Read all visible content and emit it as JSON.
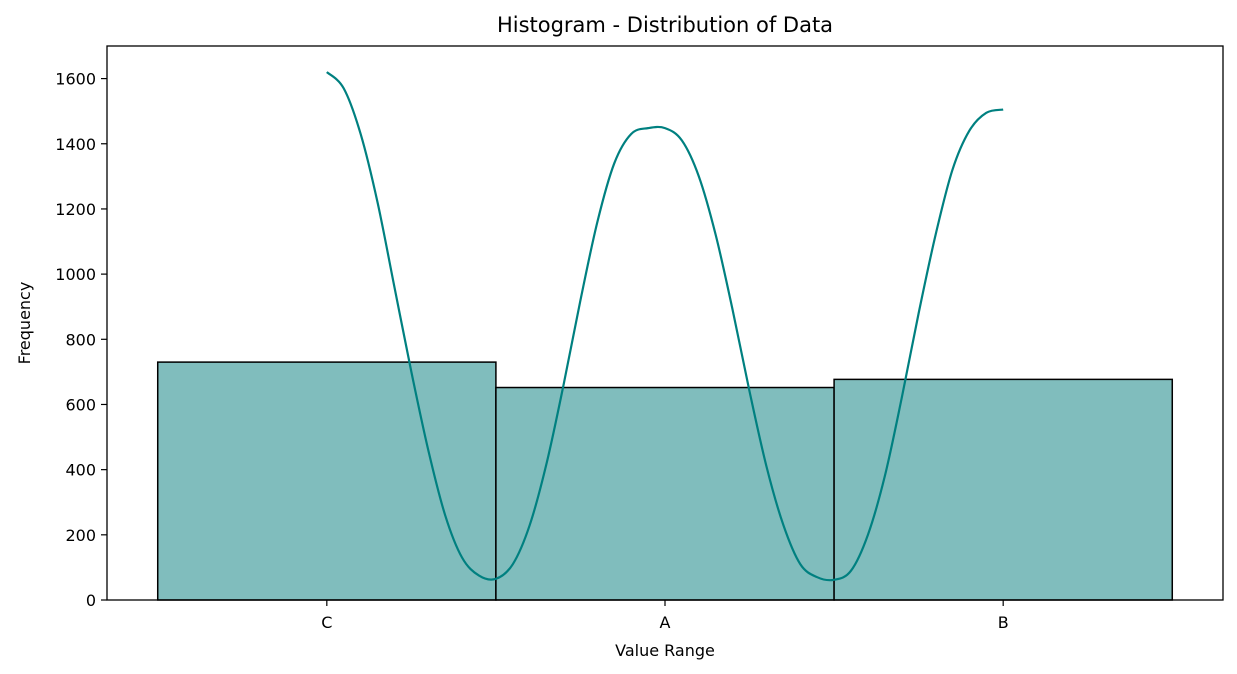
{
  "chart_data": {
    "type": "bar",
    "title": "Histogram - Distribution of Data",
    "xlabel": "Value Range",
    "ylabel": "Frequency",
    "categories": [
      "C",
      "A",
      "B"
    ],
    "values": [
      730,
      652,
      677
    ],
    "ylim": [
      0,
      1700
    ],
    "yticks": [
      0,
      200,
      400,
      600,
      800,
      1000,
      1200,
      1400,
      1600
    ],
    "xlim": [
      -0.65,
      2.65
    ],
    "grid": false,
    "bar_color": "#80bdbd",
    "bar_edge_color": "#000000",
    "kde": {
      "color": "#008080",
      "x": [
        0.0,
        0.05,
        0.1,
        0.15,
        0.2,
        0.25,
        0.3,
        0.35,
        0.4,
        0.45,
        0.5,
        0.55,
        0.6,
        0.65,
        0.7,
        0.75,
        0.8,
        0.85,
        0.9,
        0.95,
        1.0,
        1.05,
        1.1,
        1.15,
        1.2,
        1.25,
        1.3,
        1.35,
        1.4,
        1.45,
        1.5,
        1.55,
        1.6,
        1.65,
        1.7,
        1.75,
        1.8,
        1.85,
        1.9,
        1.95,
        2.0
      ],
      "y": [
        1620,
        1570,
        1430,
        1220,
        960,
        700,
        460,
        260,
        130,
        75,
        65,
        110,
        230,
        420,
        660,
        920,
        1160,
        1340,
        1430,
        1448,
        1448,
        1410,
        1300,
        1120,
        890,
        640,
        410,
        230,
        110,
        70,
        62,
        90,
        200,
        380,
        620,
        880,
        1120,
        1320,
        1440,
        1495,
        1505
      ]
    }
  }
}
